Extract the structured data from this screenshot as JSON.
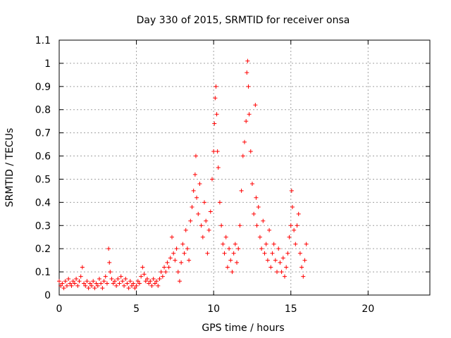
{
  "chart_data": {
    "type": "scatter",
    "title": "Day 330 of 2015, SRMTID for receiver onsa",
    "xlabel": "GPS time / hours",
    "ylabel": "SRMTID / TECUs",
    "xlim": [
      0,
      24
    ],
    "ylim": [
      0,
      1.1
    ],
    "xticks": [
      0,
      5,
      10,
      15,
      20
    ],
    "xtick_labels": [
      "0",
      "5",
      "10",
      "15",
      "20"
    ],
    "yticks": [
      0,
      0.1,
      0.2,
      0.3,
      0.4,
      0.5,
      0.6,
      0.7,
      0.8,
      0.9,
      1.0,
      1.1
    ],
    "ytick_labels": [
      "0",
      "0.1",
      "0.2",
      "0.3",
      "0.4",
      "0.5",
      "0.6",
      "0.7",
      "0.8",
      "0.9",
      "1",
      "1.1"
    ],
    "grid": true,
    "marker": "+",
    "color": "#ff0000",
    "series": [
      {
        "name": "onsa",
        "points": [
          [
            0.0,
            0.06
          ],
          [
            0.1,
            0.04
          ],
          [
            0.2,
            0.05
          ],
          [
            0.3,
            0.03
          ],
          [
            0.4,
            0.06
          ],
          [
            0.5,
            0.04
          ],
          [
            0.6,
            0.07
          ],
          [
            0.7,
            0.05
          ],
          [
            0.8,
            0.04
          ],
          [
            0.9,
            0.06
          ],
          [
            1.0,
            0.05
          ],
          [
            1.1,
            0.07
          ],
          [
            1.2,
            0.04
          ],
          [
            1.3,
            0.06
          ],
          [
            1.4,
            0.08
          ],
          [
            1.5,
            0.12
          ],
          [
            1.6,
            0.05
          ],
          [
            1.7,
            0.04
          ],
          [
            1.8,
            0.06
          ],
          [
            1.9,
            0.03
          ],
          [
            2.0,
            0.05
          ],
          [
            2.1,
            0.04
          ],
          [
            2.2,
            0.06
          ],
          [
            2.3,
            0.03
          ],
          [
            2.4,
            0.05
          ],
          [
            2.5,
            0.04
          ],
          [
            2.6,
            0.07
          ],
          [
            2.7,
            0.05
          ],
          [
            2.8,
            0.03
          ],
          [
            2.9,
            0.06
          ],
          [
            3.0,
            0.08
          ],
          [
            3.1,
            0.05
          ],
          [
            3.2,
            0.2
          ],
          [
            3.25,
            0.14
          ],
          [
            3.3,
            0.1
          ],
          [
            3.4,
            0.07
          ],
          [
            3.5,
            0.05
          ],
          [
            3.6,
            0.06
          ],
          [
            3.7,
            0.04
          ],
          [
            3.8,
            0.07
          ],
          [
            3.9,
            0.05
          ],
          [
            4.0,
            0.08
          ],
          [
            4.1,
            0.06
          ],
          [
            4.2,
            0.04
          ],
          [
            4.3,
            0.07
          ],
          [
            4.4,
            0.05
          ],
          [
            4.5,
            0.03
          ],
          [
            4.6,
            0.06
          ],
          [
            4.7,
            0.04
          ],
          [
            4.8,
            0.05
          ],
          [
            4.9,
            0.03
          ],
          [
            5.0,
            0.04
          ],
          [
            5.1,
            0.06
          ],
          [
            5.2,
            0.05
          ],
          [
            5.3,
            0.08
          ],
          [
            5.4,
            0.12
          ],
          [
            5.5,
            0.09
          ],
          [
            5.6,
            0.06
          ],
          [
            5.7,
            0.07
          ],
          [
            5.8,
            0.05
          ],
          [
            5.9,
            0.06
          ],
          [
            6.0,
            0.04
          ],
          [
            6.1,
            0.07
          ],
          [
            6.2,
            0.05
          ],
          [
            6.3,
            0.06
          ],
          [
            6.4,
            0.04
          ],
          [
            6.5,
            0.07
          ],
          [
            6.6,
            0.1
          ],
          [
            6.7,
            0.08
          ],
          [
            6.8,
            0.12
          ],
          [
            6.9,
            0.1
          ],
          [
            7.0,
            0.14
          ],
          [
            7.1,
            0.12
          ],
          [
            7.2,
            0.16
          ],
          [
            7.3,
            0.25
          ],
          [
            7.4,
            0.18
          ],
          [
            7.5,
            0.15
          ],
          [
            7.6,
            0.2
          ],
          [
            7.7,
            0.1
          ],
          [
            7.8,
            0.06
          ],
          [
            7.9,
            0.14
          ],
          [
            8.0,
            0.22
          ],
          [
            8.1,
            0.18
          ],
          [
            8.2,
            0.28
          ],
          [
            8.3,
            0.2
          ],
          [
            8.4,
            0.15
          ],
          [
            8.5,
            0.32
          ],
          [
            8.6,
            0.38
          ],
          [
            8.7,
            0.45
          ],
          [
            8.8,
            0.52
          ],
          [
            8.85,
            0.6
          ],
          [
            8.9,
            0.42
          ],
          [
            9.0,
            0.35
          ],
          [
            9.1,
            0.48
          ],
          [
            9.2,
            0.3
          ],
          [
            9.3,
            0.25
          ],
          [
            9.4,
            0.4
          ],
          [
            9.5,
            0.32
          ],
          [
            9.6,
            0.18
          ],
          [
            9.7,
            0.28
          ],
          [
            9.8,
            0.36
          ],
          [
            9.9,
            0.5
          ],
          [
            10.0,
            0.62
          ],
          [
            10.05,
            0.74
          ],
          [
            10.1,
            0.85
          ],
          [
            10.15,
            0.9
          ],
          [
            10.2,
            0.78
          ],
          [
            10.25,
            0.62
          ],
          [
            10.3,
            0.55
          ],
          [
            10.4,
            0.4
          ],
          [
            10.5,
            0.3
          ],
          [
            10.6,
            0.22
          ],
          [
            10.7,
            0.18
          ],
          [
            10.8,
            0.25
          ],
          [
            10.9,
            0.12
          ],
          [
            11.0,
            0.2
          ],
          [
            11.1,
            0.15
          ],
          [
            11.2,
            0.1
          ],
          [
            11.3,
            0.18
          ],
          [
            11.4,
            0.22
          ],
          [
            11.5,
            0.14
          ],
          [
            11.6,
            0.2
          ],
          [
            11.7,
            0.3
          ],
          [
            11.8,
            0.45
          ],
          [
            11.9,
            0.6
          ],
          [
            12.0,
            0.66
          ],
          [
            12.1,
            0.75
          ],
          [
            12.15,
            0.96
          ],
          [
            12.2,
            1.01
          ],
          [
            12.25,
            0.9
          ],
          [
            12.3,
            0.78
          ],
          [
            12.4,
            0.62
          ],
          [
            12.5,
            0.48
          ],
          [
            12.6,
            0.35
          ],
          [
            12.7,
            0.82
          ],
          [
            12.75,
            0.42
          ],
          [
            12.8,
            0.3
          ],
          [
            12.9,
            0.38
          ],
          [
            13.0,
            0.25
          ],
          [
            13.1,
            0.2
          ],
          [
            13.2,
            0.32
          ],
          [
            13.3,
            0.18
          ],
          [
            13.4,
            0.22
          ],
          [
            13.5,
            0.15
          ],
          [
            13.6,
            0.28
          ],
          [
            13.7,
            0.12
          ],
          [
            13.8,
            0.18
          ],
          [
            13.9,
            0.22
          ],
          [
            14.0,
            0.15
          ],
          [
            14.1,
            0.1
          ],
          [
            14.2,
            0.2
          ],
          [
            14.3,
            0.14
          ],
          [
            14.4,
            0.1
          ],
          [
            14.5,
            0.16
          ],
          [
            14.6,
            0.08
          ],
          [
            14.7,
            0.12
          ],
          [
            14.8,
            0.18
          ],
          [
            14.9,
            0.25
          ],
          [
            15.0,
            0.3
          ],
          [
            15.05,
            0.45
          ],
          [
            15.1,
            0.38
          ],
          [
            15.2,
            0.28
          ],
          [
            15.3,
            0.22
          ],
          [
            15.4,
            0.3
          ],
          [
            15.5,
            0.35
          ],
          [
            15.6,
            0.18
          ],
          [
            15.7,
            0.12
          ],
          [
            15.8,
            0.08
          ],
          [
            15.9,
            0.15
          ],
          [
            16.0,
            0.22
          ]
        ]
      }
    ]
  }
}
